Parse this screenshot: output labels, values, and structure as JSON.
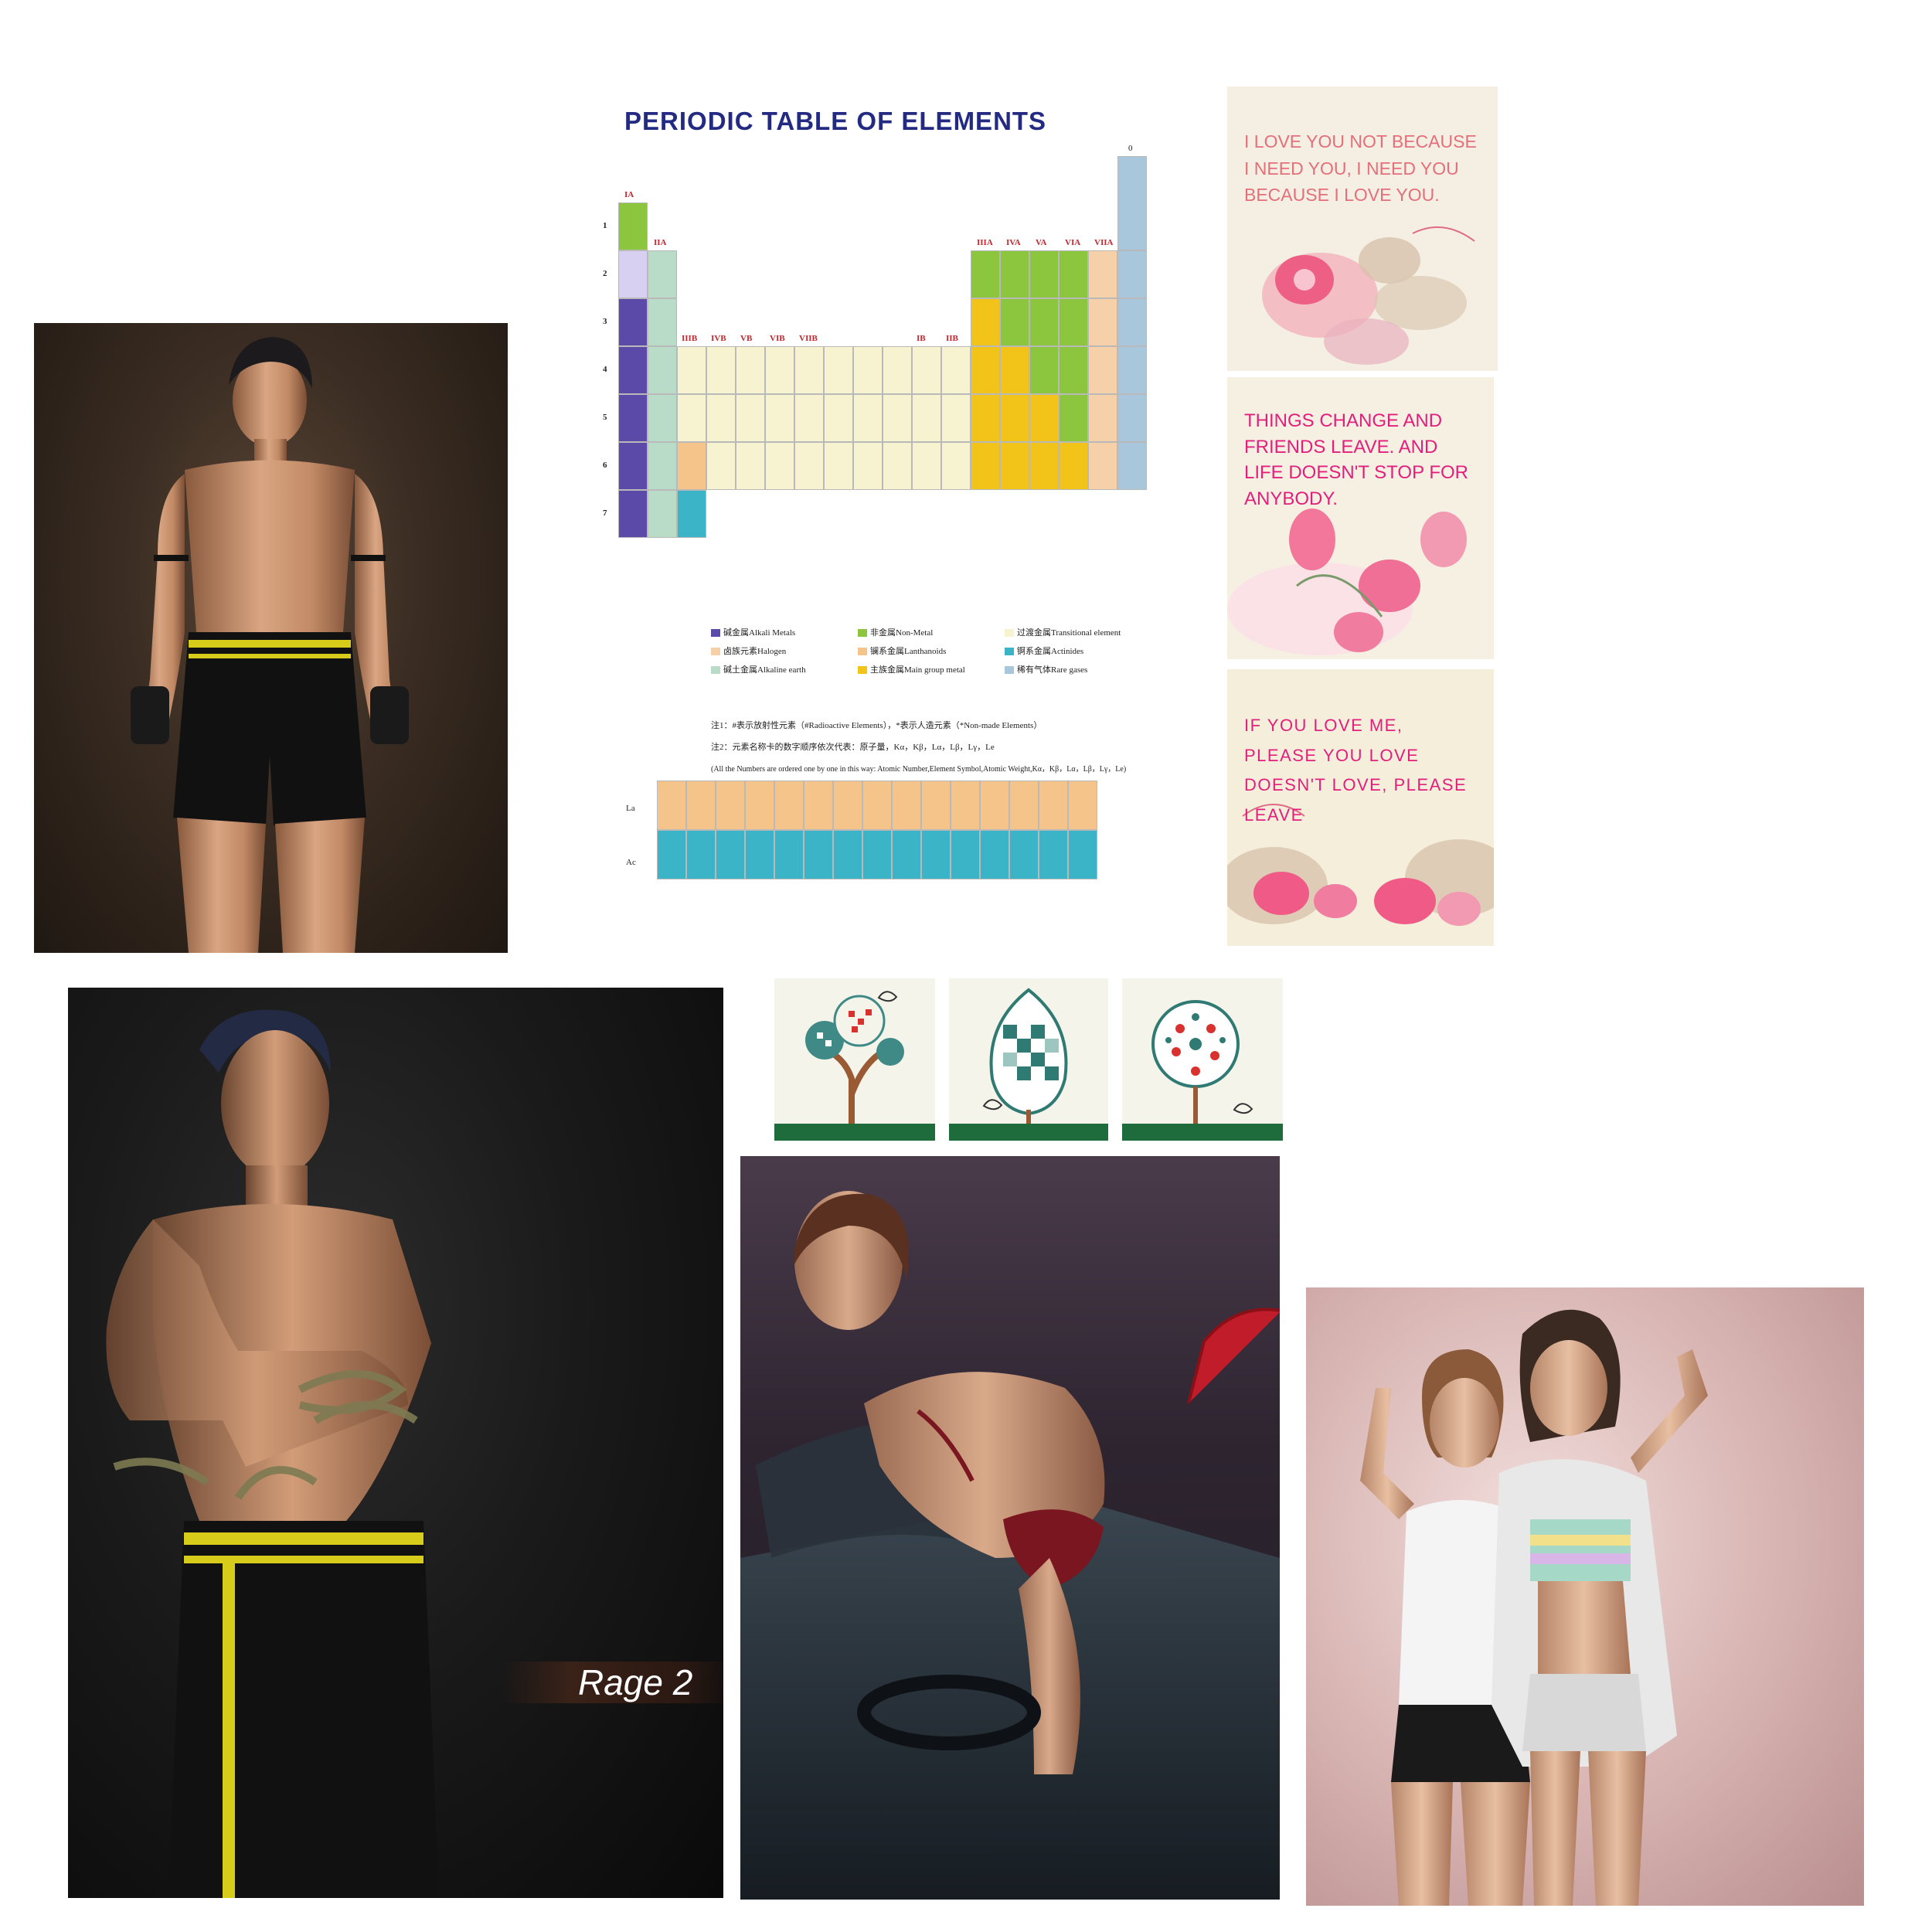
{
  "periodic_table": {
    "title": "PERIODIC TABLE OF ELEMENTS",
    "zero_group": "0",
    "groups_top": [
      "IA",
      "IIA",
      "IIIA",
      "IVA",
      "VA",
      "VIA",
      "VIIA"
    ],
    "groups_mid": [
      "IIIB",
      "IVB",
      "VB",
      "VIB",
      "VIIB",
      "IB",
      "IIB"
    ],
    "periods": [
      "1",
      "2",
      "3",
      "4",
      "5",
      "6",
      "7"
    ],
    "legend": [
      {
        "label": "碱金属Alkali Metals",
        "color": "#5b4aa8"
      },
      {
        "label": "非金属Non-Metal",
        "color": "#8cc63f"
      },
      {
        "label": "过渡金属Transitional element",
        "color": "#f7f3d0"
      },
      {
        "label": "卤族元素Halogen",
        "color": "#f6d0a8"
      },
      {
        "label": "镧系金属Lanthanoids",
        "color": "#f5c48b"
      },
      {
        "label": "锕系金属Actinides",
        "color": "#3cb4c8"
      },
      {
        "label": "碱土金属Alkaline earth",
        "color": "#b8dcc8"
      },
      {
        "label": "主族金属Main group metal",
        "color": "#f2c318"
      },
      {
        "label": "稀有气体Rare gases",
        "color": "#a8c6dc"
      }
    ],
    "note1": "注1：#表示放射性元素（#Radioactive Elements），*表示人造元素（*Non-made Elements）",
    "note2": "注2：元素名称卡的数字顺序依次代表：原子量，Kα，Kβ，Lα，Lβ，Lγ，Le",
    "note3": "(All the Numbers are ordered one by one in this way: Atomic Number,Element Symbol,Atomic Weight,Kα，Kβ，Lα，Lβ，Lγ，Le)",
    "lanthanide_label": "La",
    "actinide_label": "Ac"
  },
  "quotes": {
    "q1": "I LOVE YOU NOT BECAUSE I NEED YOU, I NEED YOU BECAUSE I LOVE YOU.",
    "q2": "THINGS CHANGE AND FRIENDS LEAVE. AND LIFE DOESN'T STOP FOR ANYBODY.",
    "q3": "IF YOU LOVE ME, PLEASE YOU LOVE DOESN'T LOVE, PLEASE LEAVE"
  },
  "fighter2": {
    "label": "Rage 2"
  },
  "colors": {
    "title_blue": "#232a82",
    "quote_pink": "#e21f7c",
    "quote_salmon": "#e46f7b",
    "short_stripe": "#d8cc1a",
    "tree_ground": "#1e6b3b"
  }
}
